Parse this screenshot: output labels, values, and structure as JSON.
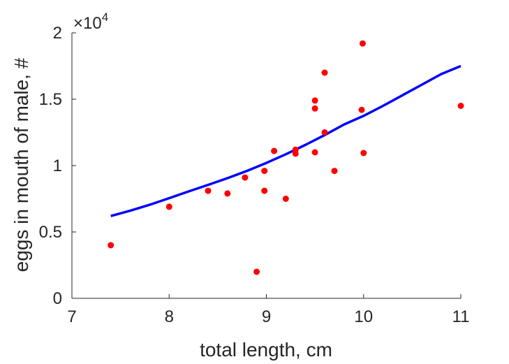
{
  "chart_data": {
    "type": "scatter",
    "xlabel": "total length, cm",
    "ylabel": "eggs in mouth of male, #",
    "xlim": [
      7,
      11
    ],
    "ylim": [
      0,
      20000
    ],
    "xticks": [
      7,
      8,
      9,
      10,
      11
    ],
    "xtick_labels": [
      "7",
      "8",
      "9",
      "10",
      "11"
    ],
    "yticks": [
      0,
      5000,
      10000,
      15000,
      20000
    ],
    "ytick_labels": [
      "0",
      "0.5",
      "1",
      "1.5",
      "2"
    ],
    "y_multiplier": {
      "symbol": "×10",
      "exponent": "4"
    },
    "grid": false,
    "box": "left-bottom",
    "series": [
      {
        "kind": "points",
        "color": "#ff0000",
        "points": [
          [
            7.4,
            4000
          ],
          [
            8.0,
            6900
          ],
          [
            8.4,
            8100
          ],
          [
            8.6,
            7900
          ],
          [
            8.78,
            9100
          ],
          [
            8.9,
            2000
          ],
          [
            8.98,
            9600
          ],
          [
            8.98,
            8100
          ],
          [
            9.08,
            11100
          ],
          [
            9.2,
            7500
          ],
          [
            9.3,
            11200
          ],
          [
            9.3,
            10900
          ],
          [
            9.5,
            14900
          ],
          [
            9.5,
            14300
          ],
          [
            9.5,
            11000
          ],
          [
            9.6,
            17000
          ],
          [
            9.6,
            12500
          ],
          [
            9.7,
            9600
          ],
          [
            9.98,
            14200
          ],
          [
            9.99,
            19200
          ],
          [
            10.0,
            10950
          ],
          [
            11.0,
            14500
          ]
        ]
      },
      {
        "kind": "line",
        "color": "#0000ff",
        "points": [
          [
            7.4,
            6200
          ],
          [
            7.6,
            6600
          ],
          [
            7.8,
            7050
          ],
          [
            8.0,
            7550
          ],
          [
            8.2,
            8050
          ],
          [
            8.4,
            8550
          ],
          [
            8.6,
            9050
          ],
          [
            8.8,
            9600
          ],
          [
            9.0,
            10200
          ],
          [
            9.2,
            10850
          ],
          [
            9.4,
            11550
          ],
          [
            9.6,
            12300
          ],
          [
            9.8,
            13100
          ],
          [
            10.0,
            13750
          ],
          [
            10.2,
            14500
          ],
          [
            10.4,
            15300
          ],
          [
            10.6,
            16100
          ],
          [
            10.8,
            16900
          ],
          [
            11.0,
            17500
          ]
        ]
      }
    ]
  }
}
